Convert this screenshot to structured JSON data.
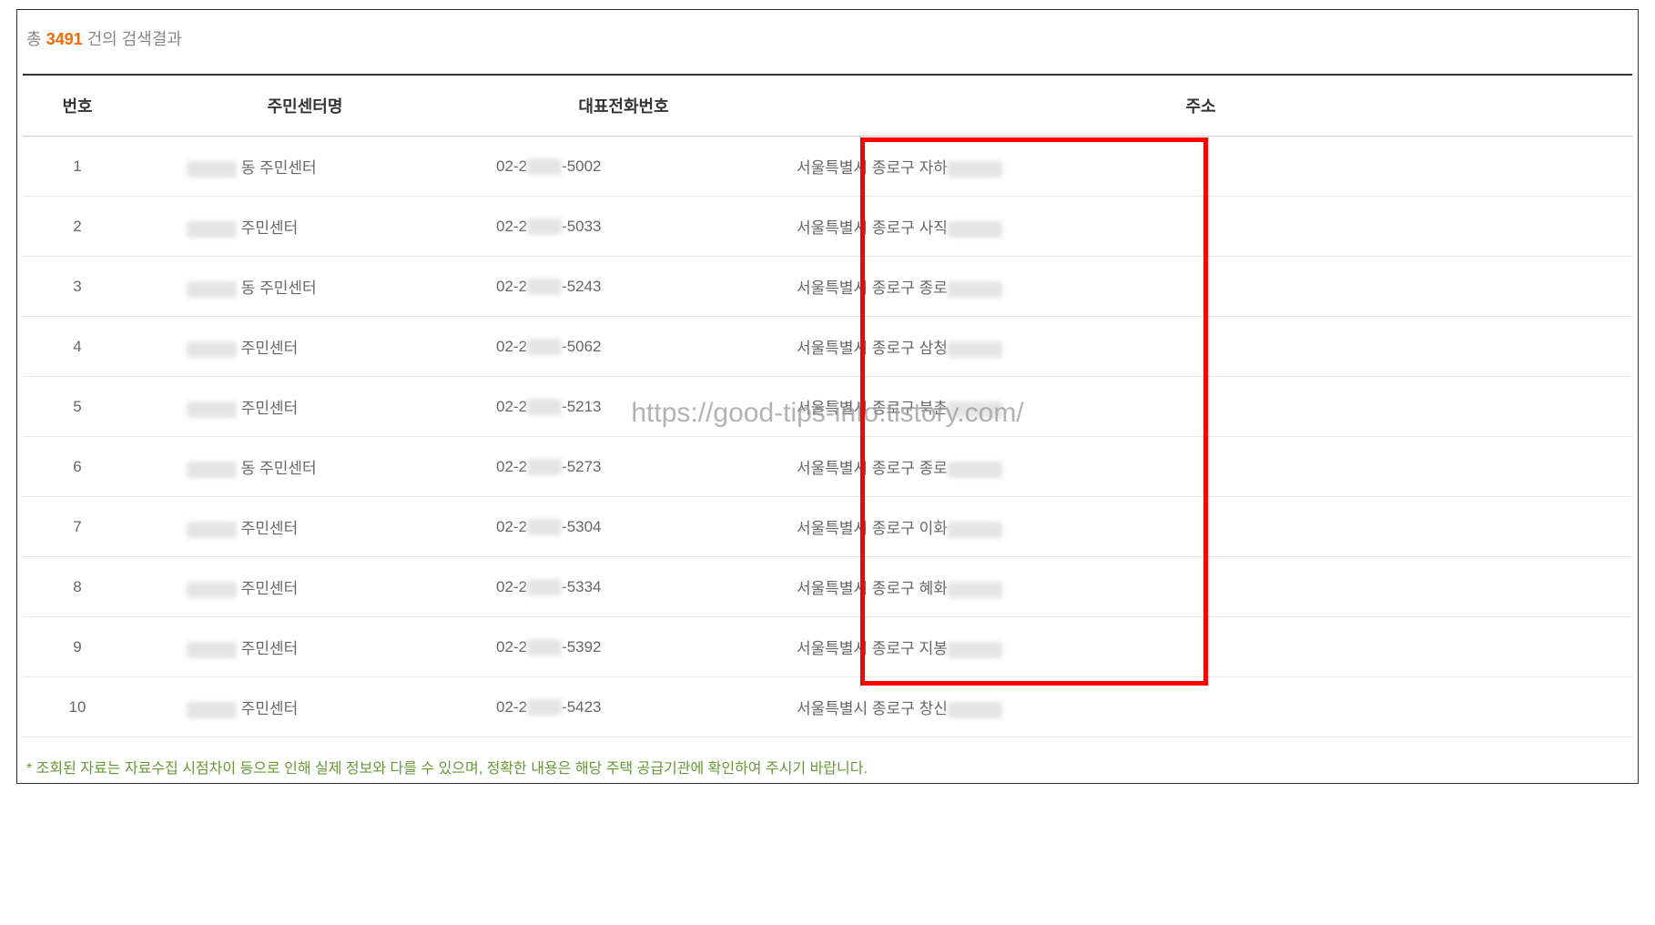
{
  "summary": {
    "prefix": "총 ",
    "count": "3491",
    "suffix": " 건의 검색결과"
  },
  "table": {
    "headers": {
      "num": "번호",
      "name": "주민센터명",
      "phone": "대표전화번호",
      "addr": "주소"
    },
    "rows": [
      {
        "num": "1",
        "name_suffix": "동 주민센터",
        "phone_prefix": "02-2",
        "phone_suffix": "-5002",
        "addr_prefix": "서울특별시 종로구 자하"
      },
      {
        "num": "2",
        "name_suffix": "주민센터",
        "phone_prefix": "02-2",
        "phone_suffix": "-5033",
        "addr_prefix": "서울특별시 종로구 사직"
      },
      {
        "num": "3",
        "name_suffix": "동 주민센터",
        "phone_prefix": "02-2",
        "phone_suffix": "-5243",
        "addr_prefix": "서울특별시 종로구 종로"
      },
      {
        "num": "4",
        "name_suffix": "주민센터",
        "phone_prefix": "02-2",
        "phone_suffix": "-5062",
        "addr_prefix": "서울특별시 종로구 삼청"
      },
      {
        "num": "5",
        "name_suffix": "주민센터",
        "phone_prefix": "02-2",
        "phone_suffix": "-5213",
        "addr_prefix": "서울특별시 종로구 북촌"
      },
      {
        "num": "6",
        "name_suffix": "동 주민센터",
        "phone_prefix": "02-2",
        "phone_suffix": "-5273",
        "addr_prefix": "서울특별시 종로구 종로"
      },
      {
        "num": "7",
        "name_suffix": "주민센터",
        "phone_prefix": "02-2",
        "phone_suffix": "-5304",
        "addr_prefix": "서울특별시 종로구 이화"
      },
      {
        "num": "8",
        "name_suffix": "주민센터",
        "phone_prefix": "02-2",
        "phone_suffix": "-5334",
        "addr_prefix": "서울특별시 종로구 혜화"
      },
      {
        "num": "9",
        "name_suffix": "주민센터",
        "phone_prefix": "02-2",
        "phone_suffix": "-5392",
        "addr_prefix": "서울특별시 종로구 지봉"
      },
      {
        "num": "10",
        "name_suffix": "주민센터",
        "phone_prefix": "02-2",
        "phone_suffix": "-5423",
        "addr_prefix": "서울특별시 종로구 창신"
      }
    ]
  },
  "footer_note": "* 조회된 자료는 자료수집 시점차이 등으로 인해 실제 정보와 다를 수 있으며, 정확한 내용은 해당 주택 공급기관에 확인하여 주시기 바랍니다.",
  "watermark": "https://good-tips-info.tistory.com/",
  "colors": {
    "accent": "#ff6600",
    "text_muted": "#888888",
    "text_body": "#666666",
    "text_header": "#333333",
    "border_thick": "#333333",
    "border_row": "#e6e6e6",
    "highlight_box": "#ff0000",
    "note_color": "#669933"
  }
}
